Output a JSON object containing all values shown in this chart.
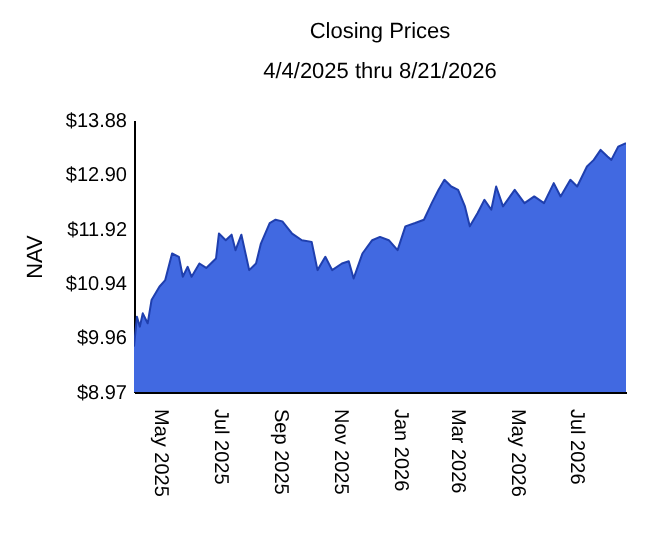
{
  "chart_data": {
    "type": "area",
    "title": "Closing Prices",
    "subtitle": "4/4/2025 thru 8/21/2026",
    "ylabel": "NAV",
    "x": [
      "2025-04-04",
      "2025-04-07",
      "2025-04-10",
      "2025-04-13",
      "2025-04-18",
      "2025-04-22",
      "2025-04-30",
      "2025-05-06",
      "2025-05-13",
      "2025-05-20",
      "2025-05-24",
      "2025-05-29",
      "2025-06-02",
      "2025-06-10",
      "2025-06-17",
      "2025-06-27",
      "2025-06-30",
      "2025-07-07",
      "2025-07-13",
      "2025-07-17",
      "2025-07-23",
      "2025-07-31",
      "2025-08-07",
      "2025-08-12",
      "2025-08-21",
      "2025-08-27",
      "2025-09-03",
      "2025-09-13",
      "2025-09-23",
      "2025-10-03",
      "2025-10-09",
      "2025-10-17",
      "2025-10-24",
      "2025-11-03",
      "2025-11-10",
      "2025-11-15",
      "2025-11-24",
      "2025-12-04",
      "2025-12-12",
      "2025-12-21",
      "2025-12-30",
      "2026-01-07",
      "2026-01-17",
      "2026-01-26",
      "2026-02-03",
      "2026-02-10",
      "2026-02-16",
      "2026-02-23",
      "2026-03-02",
      "2026-03-09",
      "2026-03-14",
      "2026-03-22",
      "2026-03-29",
      "2026-04-05",
      "2026-04-10",
      "2026-04-17",
      "2026-04-29",
      "2026-05-09",
      "2026-05-19",
      "2026-05-29",
      "2026-06-08",
      "2026-06-15",
      "2026-06-25",
      "2026-07-02",
      "2026-07-12",
      "2026-07-19",
      "2026-07-26",
      "2026-08-02",
      "2026-08-06",
      "2026-08-13",
      "2026-08-21"
    ],
    "series": [
      {
        "color": "#4169e1",
        "values": [
          9.79,
          10.33,
          10.15,
          10.39,
          10.21,
          10.63,
          10.87,
          10.99,
          11.47,
          11.41,
          11.05,
          11.23,
          11.05,
          11.29,
          11.21,
          11.38,
          11.83,
          11.71,
          11.81,
          11.53,
          11.81,
          11.17,
          11.29,
          11.65,
          12.02,
          12.08,
          12.05,
          11.83,
          11.71,
          11.68,
          11.17,
          11.41,
          11.17,
          11.29,
          11.33,
          11.02,
          11.47,
          11.71,
          11.77,
          11.71,
          11.53,
          11.96,
          12.02,
          12.08,
          12.38,
          12.62,
          12.8,
          12.68,
          12.62,
          12.32,
          11.96,
          12.2,
          12.44,
          12.26,
          12.68,
          12.32,
          12.62,
          12.38,
          12.5,
          12.38,
          12.74,
          12.5,
          12.8,
          12.68,
          13.04,
          13.16,
          13.34,
          13.22,
          13.16,
          13.4,
          13.46
        ]
      }
    ],
    "xlim": [
      "2025-04-04",
      "2026-08-21"
    ],
    "xticks": [
      {
        "value": "2025-05-01",
        "label": "May  2025"
      },
      {
        "value": "2025-07-01",
        "label": "Jul  2025"
      },
      {
        "value": "2025-09-01",
        "label": "Sep  2025"
      },
      {
        "value": "2025-11-01",
        "label": "Nov  2025"
      },
      {
        "value": "2026-01-01",
        "label": "Jan  2026"
      },
      {
        "value": "2026-03-01",
        "label": "Mar  2026"
      },
      {
        "value": "2026-05-01",
        "label": "May  2026"
      },
      {
        "value": "2026-07-01",
        "label": "Jul  2026"
      }
    ],
    "ylim": [
      8.97,
      13.88
    ],
    "yticks": [
      {
        "value": 8.97,
        "label": "$8.97"
      },
      {
        "value": 9.96,
        "label": "$9.96"
      },
      {
        "value": 10.94,
        "label": "$10.94"
      },
      {
        "value": 11.92,
        "label": "$11.92"
      },
      {
        "value": 12.9,
        "label": "$12.90"
      },
      {
        "value": 13.88,
        "label": "$13.88"
      }
    ],
    "grid": false
  }
}
